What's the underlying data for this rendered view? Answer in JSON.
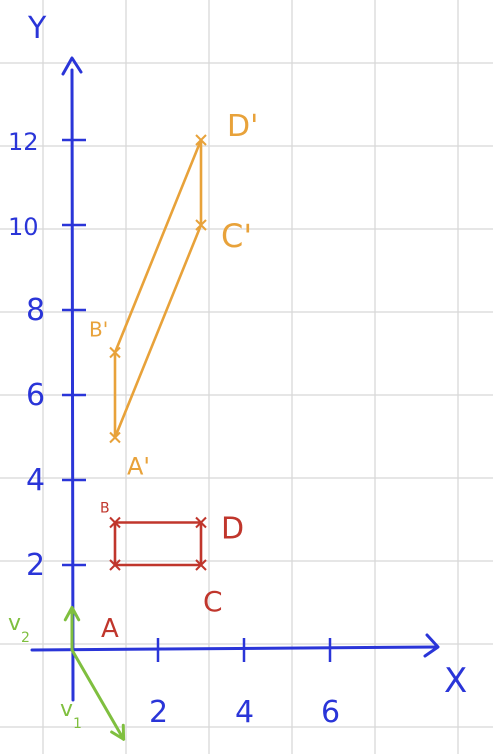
{
  "colors": {
    "axes": "#2a35d8",
    "original": "#c0362c",
    "image": "#e8a23a",
    "vectors": "#7fbf3f",
    "grid": "#d8d8d8"
  },
  "axes": {
    "x_label": "X",
    "y_label": "Y",
    "x_ticks": [
      {
        "value": 2,
        "label": "2"
      },
      {
        "value": 4,
        "label": "4"
      },
      {
        "value": 6,
        "label": "6"
      }
    ],
    "y_ticks": [
      {
        "value": 2,
        "label": "2"
      },
      {
        "value": 4,
        "label": "4"
      },
      {
        "value": 6,
        "label": "6"
      },
      {
        "value": 8,
        "label": "8"
      },
      {
        "value": 10,
        "label": "10"
      },
      {
        "value": 12,
        "label": "12"
      }
    ]
  },
  "original_rectangle": {
    "points": [
      {
        "name": "A",
        "label": "A",
        "x": 1,
        "y": 2
      },
      {
        "name": "B",
        "label": "B",
        "x": 1,
        "y": 3
      },
      {
        "name": "D",
        "label": "D",
        "x": 3,
        "y": 3
      },
      {
        "name": "C",
        "label": "C",
        "x": 3,
        "y": 2
      }
    ]
  },
  "image_parallelogram": {
    "points": [
      {
        "name": "A'",
        "label": "A'",
        "x": 1,
        "y": 5
      },
      {
        "name": "B'",
        "label": "B'",
        "x": 1,
        "y": 7
      },
      {
        "name": "D'",
        "label": "D'",
        "x": 3,
        "y": 12
      },
      {
        "name": "C'",
        "label": "C'",
        "x": 3,
        "y": 10
      }
    ]
  },
  "basis_vectors": [
    {
      "name": "v1",
      "label": "v",
      "sub": "1",
      "x": 1.2,
      "y": -2.1
    },
    {
      "name": "v2",
      "label": "v",
      "sub": "2",
      "x": 0,
      "y": 1
    }
  ]
}
